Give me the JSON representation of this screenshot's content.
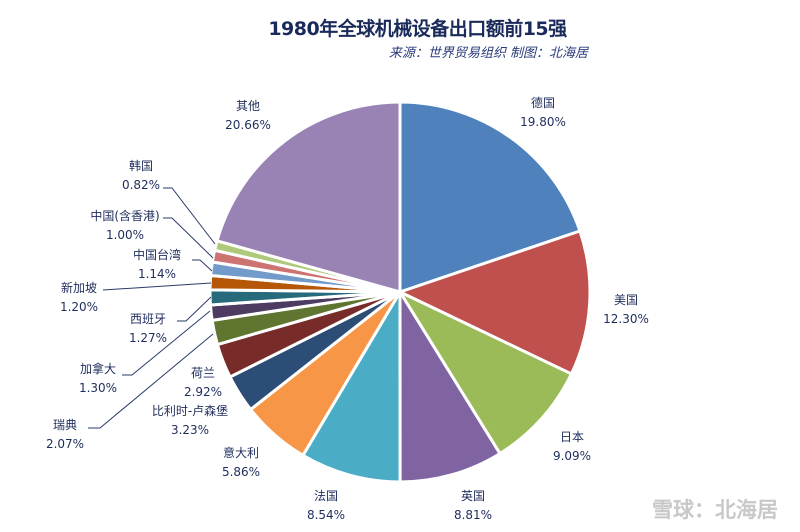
{
  "chart_data": {
    "type": "pie",
    "title": "1980年全球机械设备出口额前15强",
    "subtitle": "来源：世界贸易组织 制图：北海居",
    "start_angle": "12 o'clock",
    "direction": "clockwise",
    "slices": [
      {
        "label": "德国",
        "value": 19.8,
        "value_label": "19.80%",
        "color": "#4F81BD"
      },
      {
        "label": "美国",
        "value": 12.3,
        "value_label": "12.30%",
        "color": "#C0504D"
      },
      {
        "label": "日本",
        "value": 9.09,
        "value_label": "9.09%",
        "color": "#9BBB59"
      },
      {
        "label": "英国",
        "value": 8.81,
        "value_label": "8.81%",
        "color": "#8064A2"
      },
      {
        "label": "法国",
        "value": 8.54,
        "value_label": "8.54%",
        "color": "#4BACC6"
      },
      {
        "label": "意大利",
        "value": 5.86,
        "value_label": "5.86%",
        "color": "#F79646"
      },
      {
        "label": "比利时-卢森堡",
        "value": 3.23,
        "value_label": "3.23%",
        "color": "#2C4D75"
      },
      {
        "label": "荷兰",
        "value": 2.92,
        "value_label": "2.92%",
        "color": "#772C2A"
      },
      {
        "label": "瑞典",
        "value": 2.07,
        "value_label": "2.07%",
        "color": "#5F7530"
      },
      {
        "label": "加拿大",
        "value": 1.3,
        "value_label": "1.30%",
        "color": "#4D3B62"
      },
      {
        "label": "西班牙",
        "value": 1.27,
        "value_label": "1.27%",
        "color": "#276A7C"
      },
      {
        "label": "新加坡",
        "value": 1.2,
        "value_label": "1.20%",
        "color": "#B65708"
      },
      {
        "label": "中国台湾",
        "value": 1.14,
        "value_label": "1.14%",
        "color": "#729ACA"
      },
      {
        "label": "中国(含香港)",
        "value": 1.0,
        "value_label": "1.00%",
        "color": "#CD7371"
      },
      {
        "label": "韩国",
        "value": 0.82,
        "value_label": "0.82%",
        "color": "#AFC97A"
      },
      {
        "label": "其他",
        "value": 20.66,
        "value_label": "20.66%",
        "color": "#9983B5"
      }
    ]
  },
  "watermark": "雪球：北海居"
}
